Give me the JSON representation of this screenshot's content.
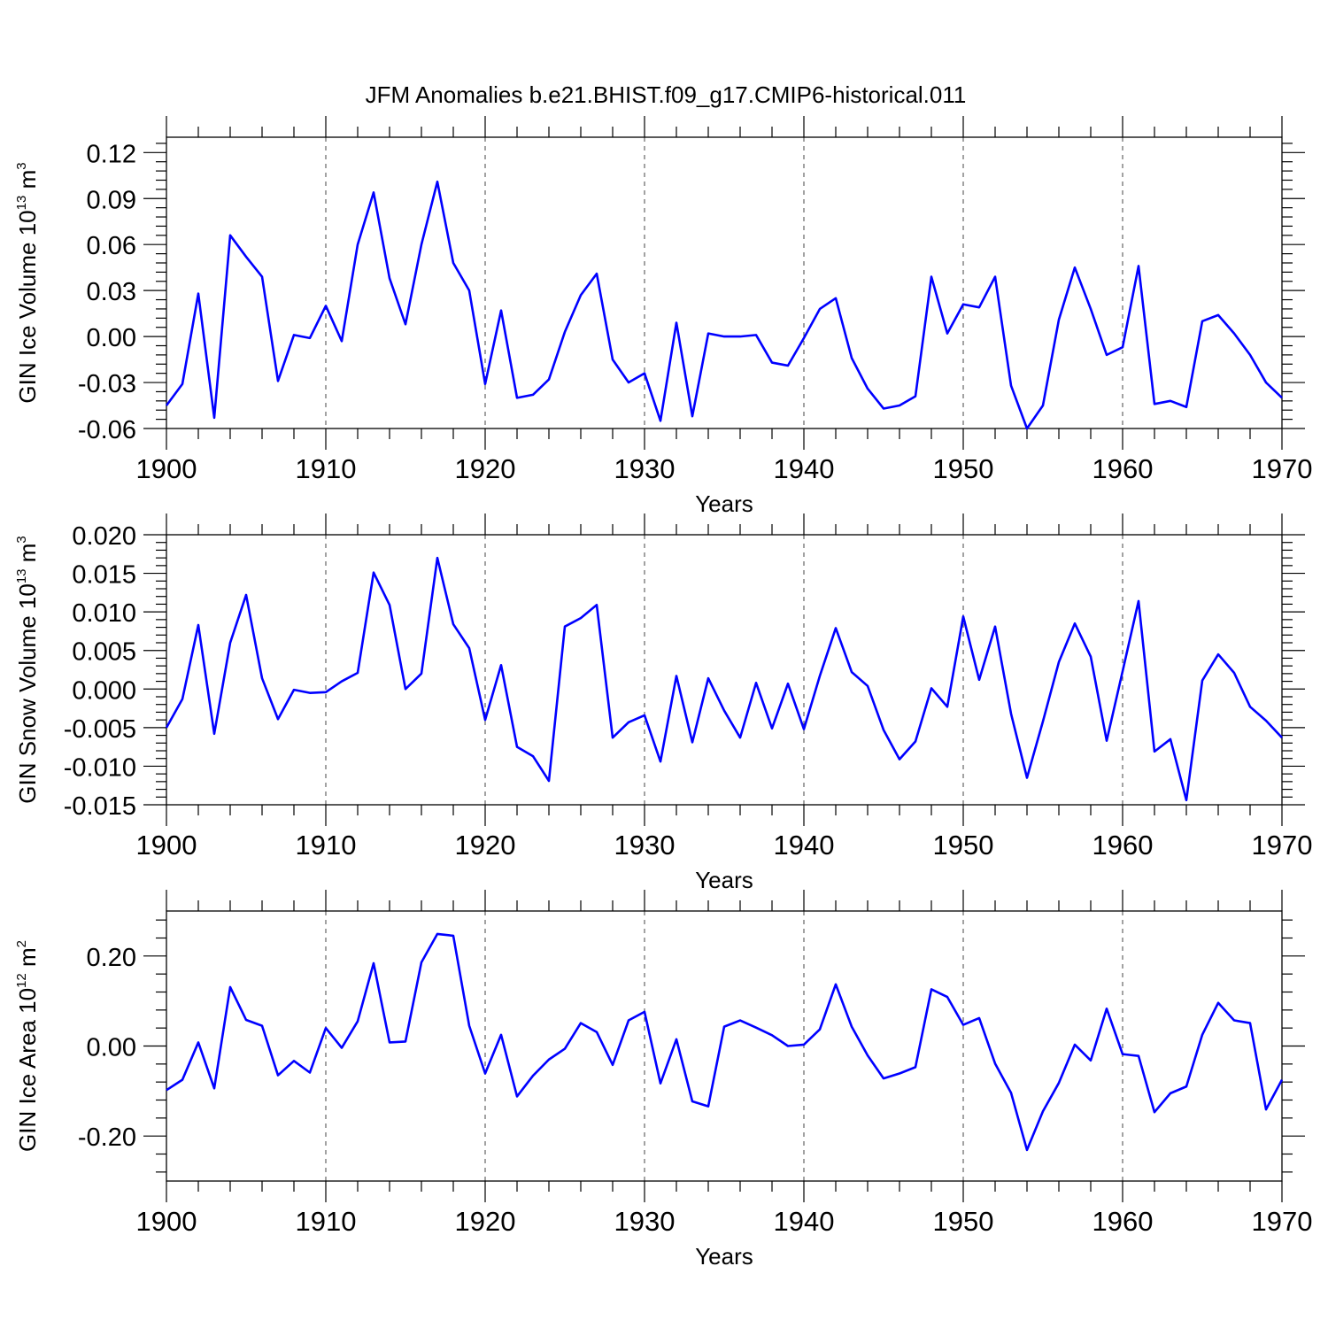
{
  "title": "JFM Anomalies b.e21.BHIST.f09_g17.CMIP6-historical.011",
  "colors": {
    "series": "#0000ff",
    "axis": "#000000"
  },
  "chart_data": [
    {
      "type": "line",
      "ylabel": "GIN Ice Volume 10",
      "ylabel_sup": "13",
      "ylabel_unit": " m",
      "ylabel_unit_sup": "3",
      "xlabel": "Years",
      "xlim": [
        1900,
        1970
      ],
      "ylim": [
        -0.06,
        0.13
      ],
      "xticks": [
        1900,
        1910,
        1920,
        1930,
        1940,
        1950,
        1960,
        1970
      ],
      "xtick_labels": [
        "1900",
        "1910",
        "1920",
        "1930",
        "1940",
        "1950",
        "1960",
        "1970"
      ],
      "yticks": [
        -0.06,
        -0.03,
        0.0,
        0.03,
        0.06,
        0.09,
        0.12
      ],
      "ytick_labels": [
        "-0.06",
        "-0.03",
        "0.00",
        "0.03",
        "0.06",
        "0.09",
        "0.12"
      ],
      "grid_x": true,
      "x_start": 1900,
      "values": [
        -0.045,
        -0.031,
        0.028,
        -0.053,
        0.066,
        0.052,
        0.039,
        -0.029,
        0.001,
        -0.001,
        0.02,
        -0.003,
        0.06,
        0.094,
        0.038,
        0.008,
        0.06,
        0.101,
        0.048,
        0.03,
        -0.031,
        0.017,
        -0.04,
        -0.038,
        -0.028,
        0.003,
        0.027,
        0.041,
        -0.015,
        -0.03,
        -0.024,
        -0.055,
        0.009,
        -0.052,
        0.002,
        0.0,
        0.0,
        0.001,
        -0.017,
        -0.019,
        -0.001,
        0.018,
        0.025,
        -0.014,
        -0.034,
        -0.047,
        -0.045,
        -0.039,
        0.039,
        0.002,
        0.021,
        0.019,
        0.039,
        -0.032,
        -0.06,
        -0.045,
        0.011,
        0.045,
        0.018,
        -0.012,
        -0.007,
        0.046,
        -0.044,
        -0.042,
        -0.046,
        0.01,
        0.014,
        0.002,
        -0.012,
        -0.03,
        -0.04
      ]
    },
    {
      "type": "line",
      "ylabel": "GIN Snow Volume 10",
      "ylabel_sup": "13",
      "ylabel_unit": " m",
      "ylabel_unit_sup": "3",
      "xlabel": "Years",
      "xlim": [
        1900,
        1970
      ],
      "ylim": [
        -0.015,
        0.02
      ],
      "xticks": [
        1900,
        1910,
        1920,
        1930,
        1940,
        1950,
        1960,
        1970
      ],
      "xtick_labels": [
        "1900",
        "1910",
        "1920",
        "1930",
        "1940",
        "1950",
        "1960",
        "1970"
      ],
      "yticks": [
        -0.015,
        -0.01,
        -0.005,
        0.0,
        0.005,
        0.01,
        0.015,
        0.02
      ],
      "ytick_labels": [
        "-0.015",
        "-0.010",
        "-0.005",
        "0.000",
        "0.005",
        "0.010",
        "0.015",
        "0.020"
      ],
      "grid_x": true,
      "x_start": 1900,
      "values": [
        -0.005,
        -0.0013,
        0.0083,
        -0.0058,
        0.006,
        0.0122,
        0.0014,
        -0.0039,
        -0.0001,
        -0.0005,
        -0.0004,
        0.001,
        0.0021,
        0.0151,
        0.0109,
        0.0,
        0.002,
        0.017,
        0.0084,
        0.0053,
        -0.004,
        0.0031,
        -0.0075,
        -0.0087,
        -0.0119,
        0.0081,
        0.0092,
        0.0109,
        -0.0063,
        -0.0043,
        -0.0034,
        -0.0094,
        0.0017,
        -0.0069,
        0.0014,
        -0.0028,
        -0.0063,
        0.0008,
        -0.0051,
        0.0007,
        -0.0052,
        0.0017,
        0.0079,
        0.0022,
        0.0004,
        -0.0053,
        -0.0091,
        -0.0068,
        0.0001,
        -0.0023,
        0.0094,
        0.0012,
        0.0081,
        -0.0032,
        -0.0115,
        -0.0042,
        0.0035,
        0.0085,
        0.0042,
        -0.0067,
        0.0023,
        0.0114,
        -0.0081,
        -0.0065,
        -0.0144,
        0.0011,
        0.0045,
        0.0021,
        -0.0023,
        -0.0041,
        -0.0063
      ]
    },
    {
      "type": "line",
      "ylabel": "GIN Ice Area 10",
      "ylabel_sup": "12",
      "ylabel_unit": " m",
      "ylabel_unit_sup": "2",
      "xlabel": "Years",
      "xlim": [
        1900,
        1970
      ],
      "ylim": [
        -0.3,
        0.3
      ],
      "xticks": [
        1900,
        1910,
        1920,
        1930,
        1940,
        1950,
        1960,
        1970
      ],
      "xtick_labels": [
        "1900",
        "1910",
        "1920",
        "1930",
        "1940",
        "1950",
        "1960",
        "1970"
      ],
      "yticks": [
        -0.2,
        0.0,
        0.2
      ],
      "ytick_labels": [
        "-0.20",
        "0.00",
        "0.20"
      ],
      "grid_x": true,
      "x_start": 1900,
      "values": [
        -0.098,
        -0.075,
        0.008,
        -0.094,
        0.131,
        0.058,
        0.045,
        -0.065,
        -0.033,
        -0.059,
        0.04,
        -0.004,
        0.055,
        0.184,
        0.008,
        0.01,
        0.186,
        0.249,
        0.245,
        0.045,
        -0.061,
        0.025,
        -0.112,
        -0.066,
        -0.03,
        -0.006,
        0.051,
        0.031,
        -0.042,
        0.057,
        0.076,
        -0.083,
        0.015,
        -0.123,
        -0.134,
        0.043,
        0.057,
        0.041,
        0.024,
        0.0,
        0.003,
        0.037,
        0.137,
        0.043,
        -0.021,
        -0.072,
        -0.061,
        -0.047,
        0.126,
        0.109,
        0.047,
        0.062,
        -0.039,
        -0.104,
        -0.231,
        -0.145,
        -0.082,
        0.003,
        -0.032,
        0.083,
        -0.018,
        -0.022,
        -0.147,
        -0.105,
        -0.09,
        0.025,
        0.096,
        0.057,
        0.051,
        -0.141,
        -0.075
      ]
    }
  ]
}
